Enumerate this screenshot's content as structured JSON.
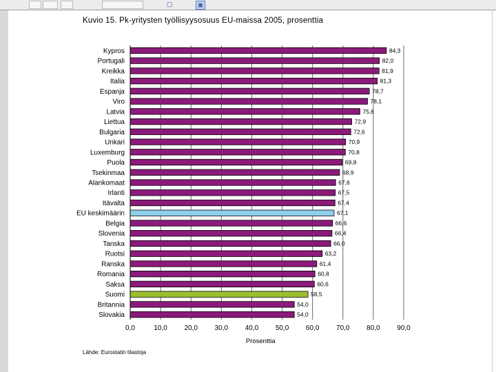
{
  "chart_data": {
    "type": "bar",
    "orientation": "horizontal",
    "title": "Kuvio 15. Pk-yritysten työllisyysosuus EU-maissa 2005, prosenttia",
    "categories": [
      "Kypros",
      "Portugali",
      "Kreikka",
      "Italia",
      "Espanja",
      "Viro",
      "Latvia",
      "Liettua",
      "Bulgaria",
      "Unkari",
      "Luxemburg",
      "Puola",
      "Tsekinmaa",
      "Alankomaat",
      "Irlanti",
      "Itävalta",
      "EU keskimäärin",
      "Belgia",
      "Slovenia",
      "Tanska",
      "Ruotsi",
      "Ranska",
      "Romania",
      "Saksa",
      "Suomi",
      "Britannia",
      "Slovakia"
    ],
    "values": [
      84.3,
      82.0,
      81.9,
      81.3,
      78.7,
      78.1,
      75.6,
      72.9,
      72.6,
      70.9,
      70.8,
      69.8,
      68.9,
      67.6,
      67.5,
      67.4,
      67.1,
      66.6,
      66.4,
      66.0,
      63.2,
      61.4,
      60.8,
      60.6,
      58.5,
      54.0,
      54.0
    ],
    "value_labels": [
      "84,3",
      "82,0",
      "81,9",
      "81,3",
      "78,7",
      "78,1",
      "75,6",
      "72,9",
      "72,6",
      "70,9",
      "70,8",
      "69,8",
      "68,9",
      "67,6",
      "67,5",
      "67,4",
      "67,1",
      "66,6",
      "66,4",
      "66,0",
      "63,2",
      "61,4",
      "60,8",
      "60,6",
      "58,5",
      "54,0",
      "54,0"
    ],
    "xlim": [
      0,
      90
    ],
    "xticks": [
      "0,0",
      "10,0",
      "20,0",
      "30,0",
      "40,0",
      "50,0",
      "60,0",
      "70,0",
      "80,0",
      "90,0"
    ],
    "xlabel": "Prosenttia",
    "ylabel": "",
    "grid": "vertical",
    "colors": {
      "default": "#8b1a7a",
      "highlight_eu": "#8ecfea",
      "highlight_fi": "#9bbf2d",
      "grid": "#666666"
    },
    "highlights": {
      "EU keskimäärin": "highlight_eu",
      "Suomi": "highlight_fi"
    },
    "source": "Lähde: Eurostatin tilastoja"
  }
}
